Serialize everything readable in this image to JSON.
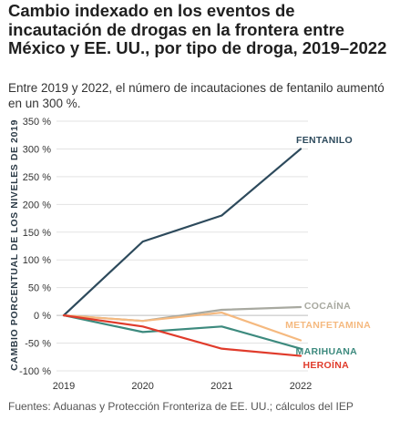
{
  "header": {
    "title": "Cambio indexado en los eventos de incautación de drogas en la frontera entre México y EE. UU., por tipo de droga, 2019–2022",
    "subtitle": "Entre 2019 y 2022, el número de incautaciones de fentanilo aumentó en un 300 %."
  },
  "footer": {
    "source": "Fuentes: Aduanas y Protección Fronteriza de EE. UU.; cálculos del IEP"
  },
  "chart_data": {
    "type": "line",
    "title": "Cambio indexado en los eventos de incautación de drogas en la frontera entre México y EE. UU., por tipo de droga, 2019–2022",
    "subtitle": "Entre 2019 y 2022, el número de incautaciones de fentanilo aumentó en un 300 %.",
    "xlabel": "",
    "ylabel": "CAMBIO PORCENTUAL DE LOS NIVELES DE 2019",
    "x": [
      "2019",
      "2020",
      "2021",
      "2022"
    ],
    "ylim": [
      -100,
      350
    ],
    "yticks": [
      -100,
      -50,
      0,
      50,
      100,
      150,
      200,
      250,
      300,
      350
    ],
    "ytick_labels": [
      "-100 %",
      "-50 %",
      "0 %",
      "50 %",
      "100 %",
      "150 %",
      "200 %",
      "250 %",
      "300 %",
      "350 %"
    ],
    "grid": "horizontal",
    "legend": "labels at line ends (right)",
    "series": [
      {
        "name": "FENTANILO",
        "color": "#2d4a5c",
        "values": [
          0,
          133,
          180,
          300
        ]
      },
      {
        "name": "COCAÍNA",
        "color": "#a8a9a0",
        "values": [
          0,
          -10,
          10,
          15
        ]
      },
      {
        "name": "METANFETAMINA",
        "color": "#f5b97f",
        "values": [
          0,
          -10,
          5,
          -45
        ]
      },
      {
        "name": "MARIHUANA",
        "color": "#3d8a7e",
        "values": [
          0,
          -30,
          -20,
          -60
        ]
      },
      {
        "name": "HEROÍNA",
        "color": "#e03b2b",
        "values": [
          0,
          -20,
          -60,
          -73
        ]
      }
    ]
  }
}
